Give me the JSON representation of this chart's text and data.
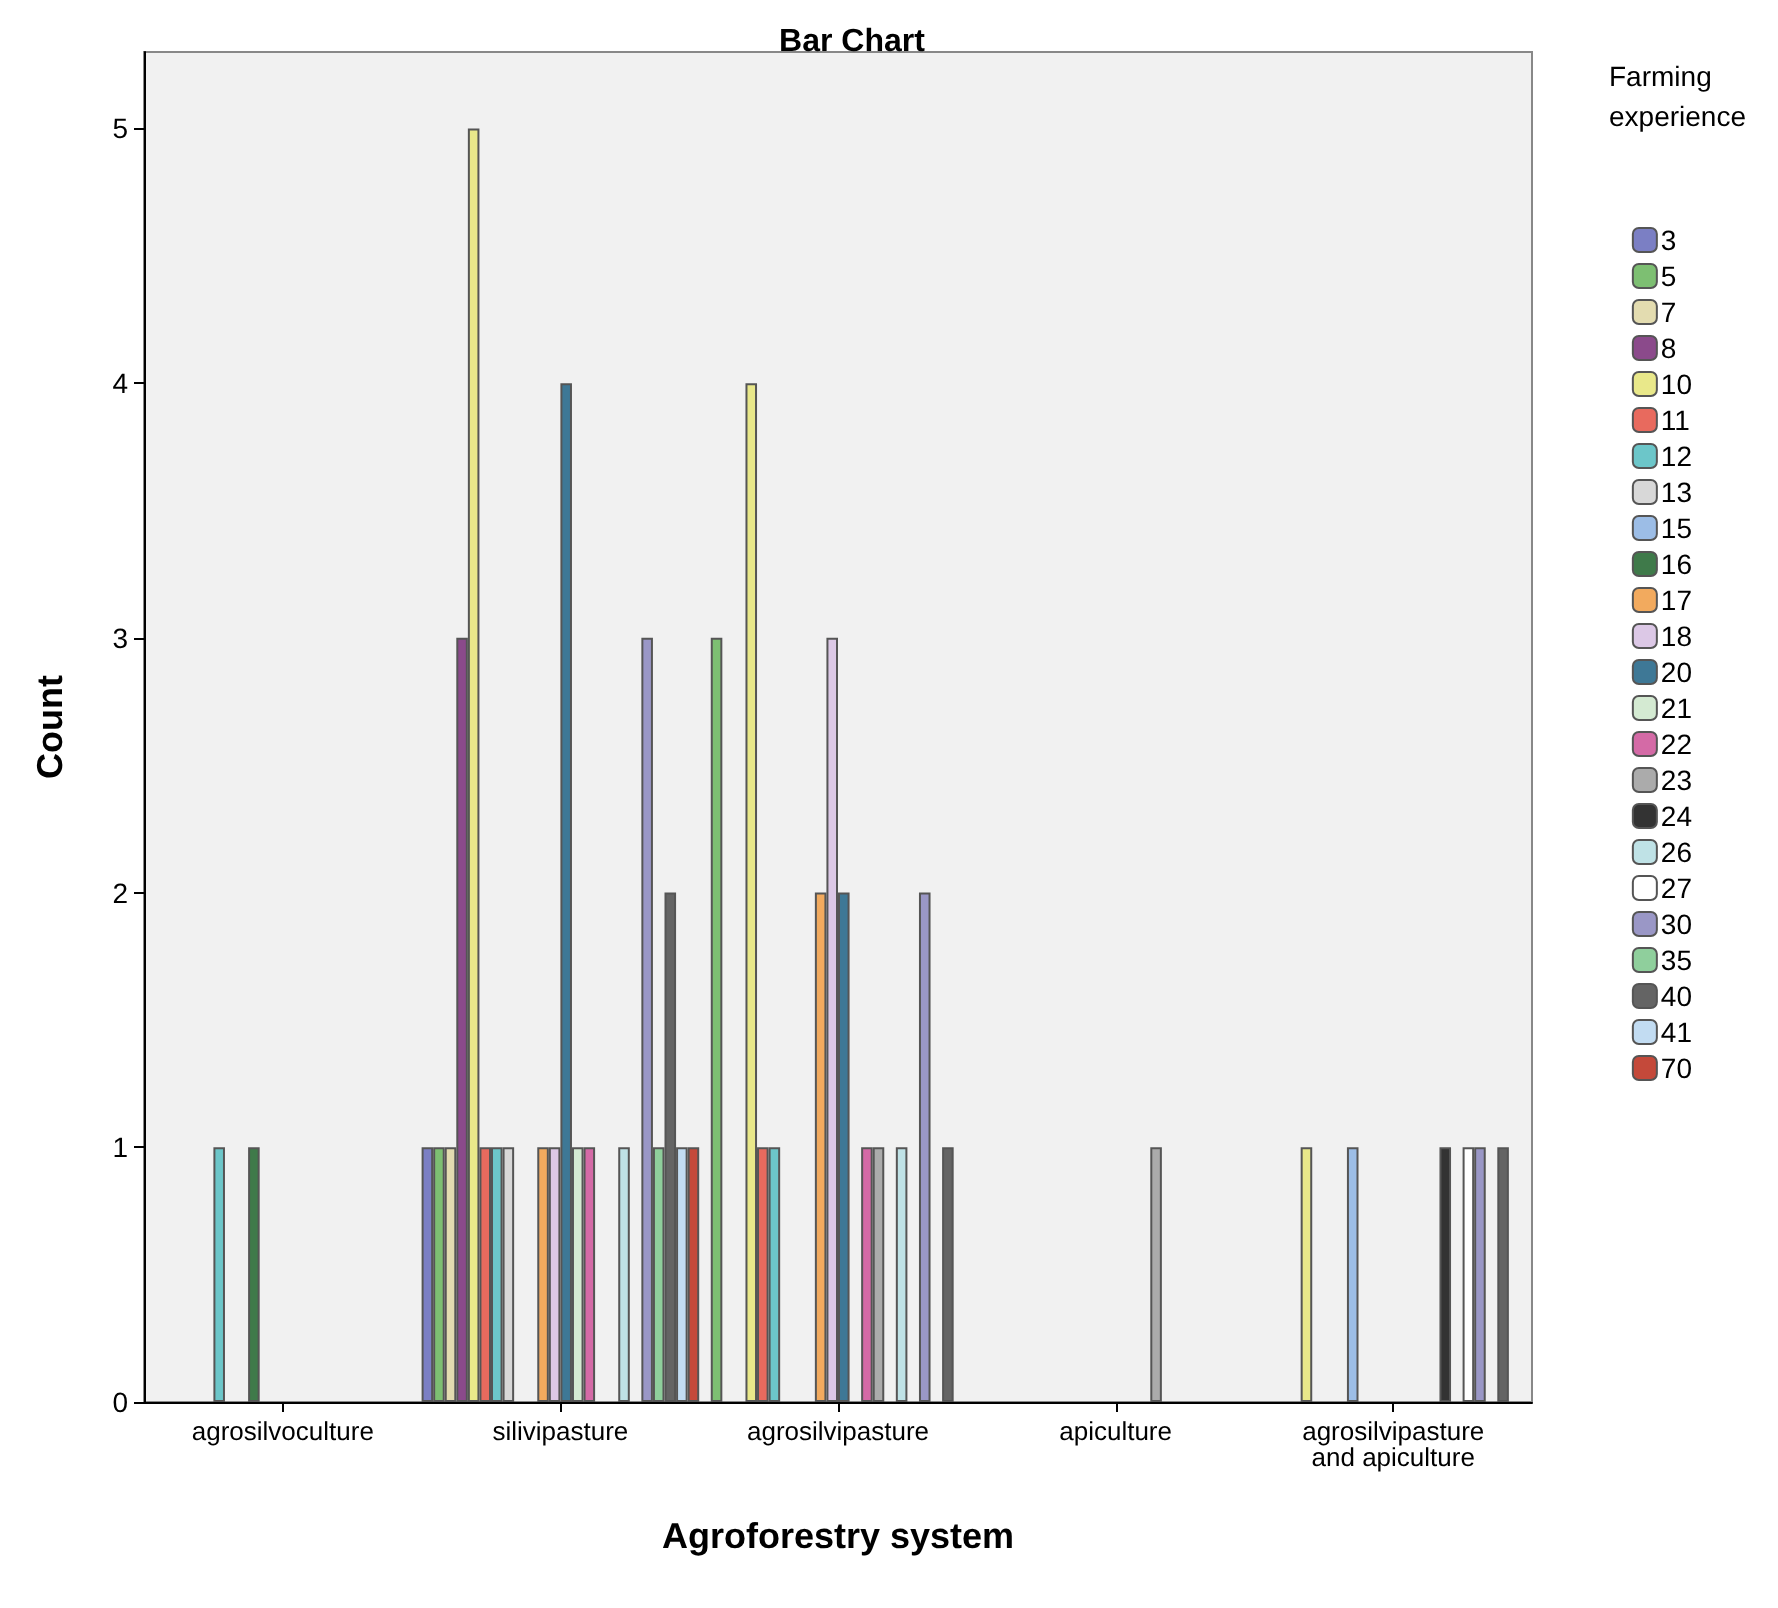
{
  "chart_data": {
    "type": "bar",
    "title": "Bar Chart",
    "xlabel": "Agroforestry system",
    "ylabel": "Count",
    "legend_title": "Farming experience",
    "legend": "right",
    "grid": false,
    "categories": [
      "agrosilvoculture",
      "silivipasture",
      "agrosilvipasture",
      "apiculture",
      "agrosilvipasture\nand apiculture"
    ],
    "ylim": [
      0,
      5.3
    ],
    "yticks": [
      0,
      1,
      2,
      3,
      4,
      5
    ],
    "series": [
      {
        "name": "3",
        "color": "#7b7fc4",
        "values": [
          null,
          1,
          null,
          null,
          null
        ]
      },
      {
        "name": "5",
        "color": "#7dbf72",
        "values": [
          null,
          1,
          3,
          null,
          null
        ]
      },
      {
        "name": "7",
        "color": "#e3dcb0",
        "values": [
          null,
          1,
          null,
          null,
          null
        ]
      },
      {
        "name": "8",
        "color": "#8b4a8b",
        "values": [
          null,
          3,
          null,
          null,
          null
        ]
      },
      {
        "name": "10",
        "color": "#e9e88a",
        "values": [
          null,
          5,
          4,
          null,
          1
        ]
      },
      {
        "name": "11",
        "color": "#e86a5e",
        "values": [
          null,
          1,
          1,
          null,
          null
        ]
      },
      {
        "name": "12",
        "color": "#6cc6c9",
        "values": [
          1,
          1,
          1,
          null,
          null
        ]
      },
      {
        "name": "13",
        "color": "#d8d8d8",
        "values": [
          null,
          1,
          null,
          null,
          null
        ]
      },
      {
        "name": "15",
        "color": "#9cbde6",
        "values": [
          null,
          null,
          null,
          null,
          1
        ]
      },
      {
        "name": "16",
        "color": "#3f7a4a",
        "values": [
          1,
          null,
          null,
          null,
          null
        ]
      },
      {
        "name": "17",
        "color": "#f2aa5e",
        "values": [
          null,
          1,
          2,
          null,
          null
        ]
      },
      {
        "name": "18",
        "color": "#dcc8e6",
        "values": [
          null,
          1,
          3,
          null,
          null
        ]
      },
      {
        "name": "20",
        "color": "#3e7896",
        "values": [
          null,
          4,
          2,
          null,
          null
        ]
      },
      {
        "name": "21",
        "color": "#d4ead2",
        "values": [
          null,
          1,
          null,
          null,
          null
        ]
      },
      {
        "name": "22",
        "color": "#d46aa6",
        "values": [
          null,
          1,
          1,
          null,
          null
        ]
      },
      {
        "name": "23",
        "color": "#ababab",
        "values": [
          null,
          null,
          1,
          1,
          null
        ]
      },
      {
        "name": "24",
        "color": "#333333",
        "values": [
          null,
          null,
          null,
          null,
          1
        ]
      },
      {
        "name": "26",
        "color": "#bfe2e6",
        "values": [
          null,
          1,
          1,
          null,
          null
        ]
      },
      {
        "name": "27",
        "color": "#ffffff",
        "values": [
          null,
          null,
          null,
          null,
          1
        ]
      },
      {
        "name": "30",
        "color": "#9a97c6",
        "values": [
          null,
          3,
          2,
          null,
          1
        ]
      },
      {
        "name": "35",
        "color": "#8fcf9c",
        "values": [
          null,
          1,
          null,
          null,
          null
        ]
      },
      {
        "name": "40",
        "color": "#646464",
        "values": [
          null,
          2,
          1,
          null,
          1
        ]
      },
      {
        "name": "41",
        "color": "#c2dcf2",
        "values": [
          null,
          1,
          null,
          null,
          null
        ]
      },
      {
        "name": "70",
        "color": "#c4493a",
        "values": [
          null,
          1,
          null,
          null,
          null
        ]
      }
    ]
  }
}
